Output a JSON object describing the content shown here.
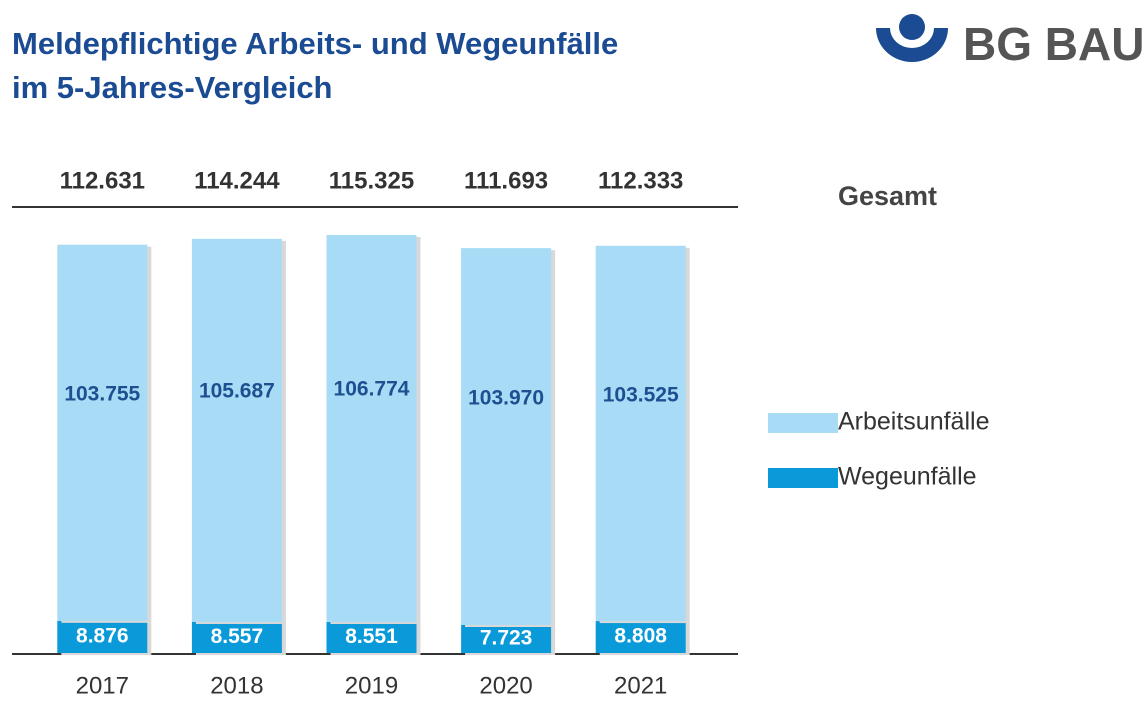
{
  "chart_data": {
    "type": "stacked-bar",
    "title": [
      "Meldepflichtige Arbeits- und Wegeunfälle",
      "im 5-Jahres-Vergleich"
    ],
    "logo": "BG BAU",
    "categories": [
      "2017",
      "2018",
      "2019",
      "2020",
      "2021"
    ],
    "series": [
      {
        "name": "Wegeunfälle",
        "color": "#0a9ad9",
        "values": [
          8876,
          8557,
          8551,
          7723,
          8808
        ],
        "value_labels": [
          "8.876",
          "8.557",
          "8.551",
          "7.723",
          "8.808"
        ]
      },
      {
        "name": "Arbeitsunfälle",
        "color": "#a8dcf6",
        "values": [
          103755,
          105687,
          106774,
          103970,
          103525
        ],
        "value_labels": [
          "103.755",
          "105.687",
          "106.774",
          "103.970",
          "103.525"
        ]
      }
    ],
    "totals": {
      "name": "Gesamt",
      "values": [
        112631,
        114244,
        115325,
        111693,
        112333
      ],
      "value_labels": [
        "112.631",
        "114.244",
        "115.325",
        "111.693",
        "112.333"
      ]
    },
    "ylim": [
      0,
      120000
    ]
  }
}
